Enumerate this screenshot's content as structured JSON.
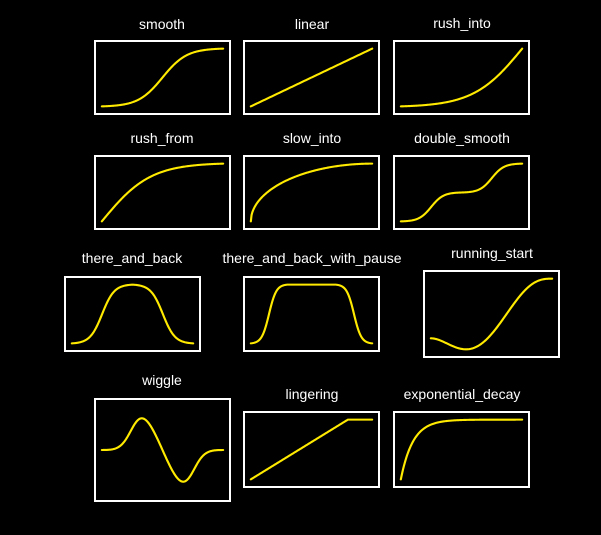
{
  "colors": {
    "background": "#000000",
    "frame": "#ffffff",
    "label": "#ffffff",
    "curve": "#ffea00"
  },
  "functions": [
    {
      "name": "smooth"
    },
    {
      "name": "linear"
    },
    {
      "name": "rush_into"
    },
    {
      "name": "rush_from"
    },
    {
      "name": "slow_into"
    },
    {
      "name": "double_smooth"
    },
    {
      "name": "there_and_back"
    },
    {
      "name": "there_and_back_with_pause"
    },
    {
      "name": "running_start"
    },
    {
      "name": "wiggle"
    },
    {
      "name": "lingering"
    },
    {
      "name": "exponential_decay"
    }
  ]
}
